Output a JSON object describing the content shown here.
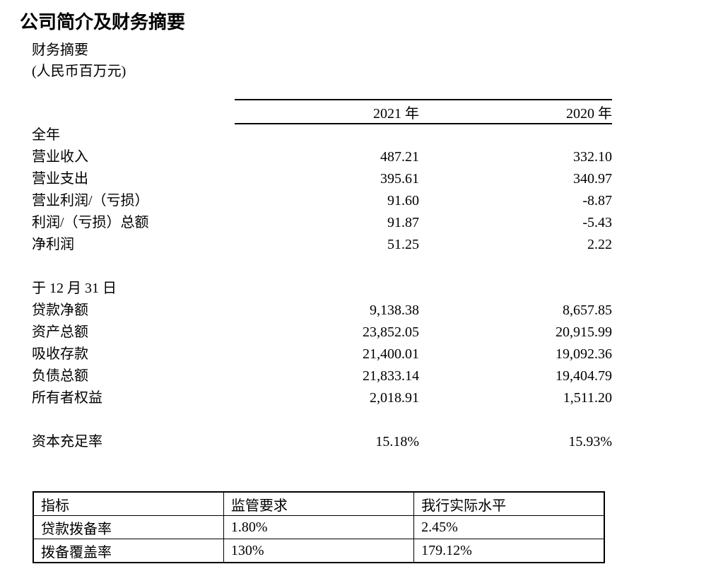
{
  "page": {
    "title": "公司简介及财务摘要",
    "subtitle": "财务摘要",
    "unit_note": "(人民币百万元)"
  },
  "summary_table": {
    "col_headers": [
      "2021 年",
      "2020 年"
    ],
    "sections": [
      {
        "heading": "全年",
        "rows": [
          {
            "label": "营业收入",
            "v2021": "487.21",
            "v2020": "332.10"
          },
          {
            "label": "营业支出",
            "v2021": "395.61",
            "v2020": "340.97"
          },
          {
            "label": "营业利润/（亏损）",
            "v2021": "91.60",
            "v2020": "-8.87"
          },
          {
            "label": "利润/（亏损）总额",
            "v2021": "91.87",
            "v2020": "-5.43"
          },
          {
            "label": "净利润",
            "v2021": "51.25",
            "v2020": "2.22"
          }
        ]
      },
      {
        "heading": "于 12 月 31 日",
        "rows": [
          {
            "label": "贷款净额",
            "v2021": "9,138.38",
            "v2020": "8,657.85"
          },
          {
            "label": "资产总额",
            "v2021": "23,852.05",
            "v2020": "20,915.99"
          },
          {
            "label": "吸收存款",
            "v2021": "21,400.01",
            "v2020": "19,092.36"
          },
          {
            "label": "负债总额",
            "v2021": "21,833.14",
            "v2020": "19,404.79"
          },
          {
            "label": "所有者权益",
            "v2021": "2,018.91",
            "v2020": "1,511.20"
          }
        ]
      },
      {
        "heading": "",
        "rows": [
          {
            "label": "资本充足率",
            "v2021": "15.18%",
            "v2020": "15.93%"
          }
        ]
      }
    ]
  },
  "ratio_table": {
    "headers": [
      "指标",
      "监管要求",
      "我行实际水平"
    ],
    "rows": [
      {
        "indicator": "贷款拨备率",
        "requirement": "1.80%",
        "actual": "2.45%"
      },
      {
        "indicator": "拨备覆盖率",
        "requirement": "130%",
        "actual": "179.12%"
      }
    ]
  }
}
